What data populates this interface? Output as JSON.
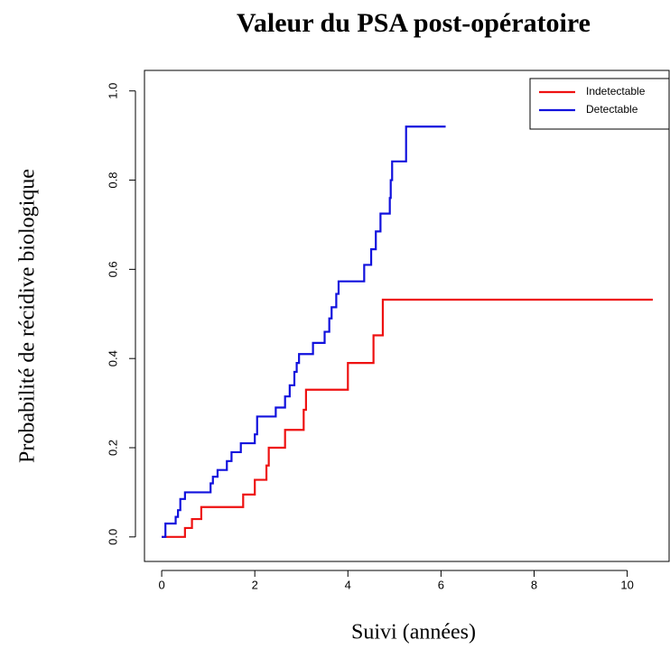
{
  "chart_data": {
    "type": "line",
    "step": "post",
    "title": "Valeur du PSA post-opératoire",
    "xlabel": "Suivi (années)",
    "ylabel": "Probabilité de récidive biologique",
    "xlim": [
      -0.37,
      10.9
    ],
    "ylim": [
      -0.055,
      1.046
    ],
    "xticks": [
      0,
      2,
      4,
      6,
      8,
      10
    ],
    "yticks": [
      {
        "value": 0,
        "label": "0.0"
      },
      0.2,
      0.4,
      0.6,
      0.8,
      {
        "value": 1,
        "label": "1.0"
      }
    ],
    "legend": "topright",
    "series": [
      {
        "name": "Indetectable",
        "color": "#ee1111",
        "x": [
          0,
          0.5,
          0.65,
          0.85,
          1.75,
          2.0,
          2.25,
          2.3,
          2.65,
          3.05,
          3.1,
          4.0,
          4.55,
          4.75,
          10.55
        ],
        "values": [
          0,
          0.02,
          0.04,
          0.067,
          0.095,
          0.128,
          0.16,
          0.2,
          0.24,
          0.285,
          0.33,
          0.39,
          0.452,
          0.532,
          0.532
        ]
      },
      {
        "name": "Detectable",
        "color": "#1111dd",
        "x": [
          0,
          0.08,
          0.3,
          0.35,
          0.4,
          0.5,
          1.05,
          1.1,
          1.2,
          1.4,
          1.5,
          1.7,
          2.0,
          2.05,
          2.45,
          2.65,
          2.75,
          2.85,
          2.9,
          2.95,
          3.25,
          3.5,
          3.6,
          3.65,
          3.75,
          3.8,
          4.35,
          4.5,
          4.6,
          4.7,
          4.9,
          4.92,
          4.95,
          5.25,
          6.1
        ],
        "values": [
          0,
          0.03,
          0.045,
          0.06,
          0.085,
          0.1,
          0.12,
          0.135,
          0.15,
          0.17,
          0.19,
          0.21,
          0.23,
          0.27,
          0.29,
          0.315,
          0.34,
          0.37,
          0.39,
          0.41,
          0.435,
          0.46,
          0.49,
          0.515,
          0.545,
          0.573,
          0.61,
          0.645,
          0.685,
          0.725,
          0.76,
          0.8,
          0.842,
          0.92,
          0.92
        ]
      }
    ]
  }
}
